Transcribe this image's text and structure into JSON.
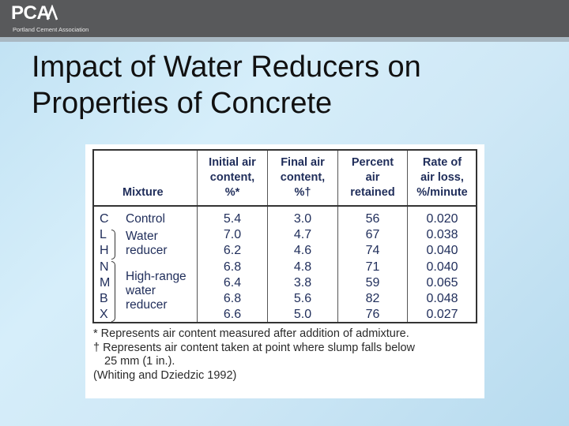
{
  "header": {
    "logo_text": "PCA",
    "logo_subtitle": "Portland Cement Association",
    "colors": {
      "bar": "#58595b",
      "text": "#ffffff"
    }
  },
  "slide": {
    "title_line1": "Impact of Water Reducers on",
    "title_line2": "Properties of Concrete"
  },
  "table": {
    "col_mixture": "Mixture",
    "col_initial": [
      "Initial air",
      "content,",
      "%*"
    ],
    "col_final": [
      "Final air",
      "content,",
      "%†"
    ],
    "col_percent": [
      "Percent",
      "air",
      "retained"
    ],
    "col_rate": [
      "Rate of",
      "air loss,",
      "%/minute"
    ],
    "codes": [
      "C",
      "L",
      "H",
      "N",
      "M",
      "B",
      "X"
    ],
    "groups": {
      "control": "Control",
      "water_reducer": [
        "Water",
        "reducer"
      ],
      "high_range": [
        "High-range",
        "water",
        "reducer"
      ]
    },
    "initial_air": [
      "5.4",
      "7.0",
      "6.2",
      "6.8",
      "6.4",
      "6.8",
      "6.6"
    ],
    "final_air": [
      "3.0",
      "4.7",
      "4.6",
      "4.8",
      "3.8",
      "5.6",
      "5.0"
    ],
    "percent_retained": [
      "56",
      "67",
      "74",
      "71",
      "59",
      "82",
      "76"
    ],
    "rate_loss": [
      "0.020",
      "0.038",
      "0.040",
      "0.040",
      "0.065",
      "0.048",
      "0.027"
    ]
  },
  "footnotes": {
    "note1": "* Represents air content measured after addition of admixture.",
    "note2a": "† Represents air content taken at point where slump falls below",
    "note2b": "25 mm (1 in.).",
    "source": "(Whiting and Dziedzic 1992)"
  }
}
